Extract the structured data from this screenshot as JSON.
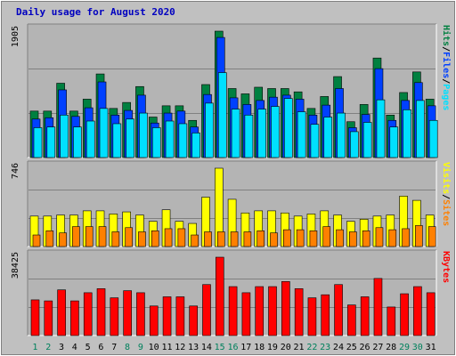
{
  "title": "Daily usage for August 2020",
  "colors": {
    "background": "#c0c0c0",
    "panel": "#b4b4b4",
    "hits": "#008040",
    "files": "#0040ff",
    "pages": "#00e0ff",
    "visits": "#ffff00",
    "sites": "#ff8000",
    "kbytes": "#ff0000",
    "weekday_label": "#000000",
    "weekend_label": "#00805c"
  },
  "chart_data": [
    {
      "type": "bar",
      "panel": "hits-files-pages",
      "max_label": "1905",
      "ylim": [
        0,
        1905
      ],
      "legend": {
        "pages": "Pages",
        "files": "Files",
        "hits": "Hits",
        "sep": "/"
      },
      "categories": [
        "1",
        "2",
        "3",
        "4",
        "5",
        "6",
        "7",
        "8",
        "9",
        "10",
        "11",
        "12",
        "13",
        "14",
        "15",
        "16",
        "17",
        "18",
        "19",
        "20",
        "21",
        "22",
        "23",
        "24",
        "25",
        "26",
        "27",
        "28",
        "29",
        "30",
        "31"
      ],
      "weekend": [
        "1",
        "2",
        "8",
        "9",
        "15",
        "16",
        "22",
        "23",
        "29",
        "30"
      ],
      "series": [
        {
          "name": "Hits",
          "values": [
            700,
            700,
            1120,
            700,
            880,
            1260,
            740,
            830,
            1070,
            610,
            780,
            780,
            560,
            1100,
            1905,
            1040,
            960,
            1060,
            1040,
            1040,
            990,
            740,
            920,
            1220,
            540,
            800,
            1500,
            640,
            980,
            1290,
            880
          ]
        },
        {
          "name": "Files",
          "values": [
            580,
            600,
            1020,
            620,
            750,
            1140,
            640,
            710,
            940,
            520,
            670,
            700,
            460,
            950,
            1810,
            900,
            800,
            860,
            910,
            940,
            880,
            640,
            790,
            1040,
            450,
            650,
            1340,
            560,
            860,
            1130,
            780
          ]
        },
        {
          "name": "Pages",
          "values": [
            450,
            460,
            640,
            460,
            550,
            740,
            510,
            580,
            670,
            450,
            550,
            510,
            370,
            820,
            1280,
            730,
            640,
            730,
            770,
            890,
            690,
            500,
            610,
            670,
            390,
            530,
            870,
            460,
            720,
            860,
            560
          ]
        }
      ]
    },
    {
      "type": "bar",
      "panel": "visits-sites",
      "max_label": "746",
      "ylim": [
        0,
        746
      ],
      "legend": {
        "sites": "Sites",
        "visits": "Visits",
        "sep": "/"
      },
      "categories": [
        "1",
        "2",
        "3",
        "4",
        "5",
        "6",
        "7",
        "8",
        "9",
        "10",
        "11",
        "12",
        "13",
        "14",
        "15",
        "16",
        "17",
        "18",
        "19",
        "20",
        "21",
        "22",
        "23",
        "24",
        "25",
        "26",
        "27",
        "28",
        "29",
        "30",
        "31"
      ],
      "series": [
        {
          "name": "Visits",
          "values": [
            290,
            290,
            300,
            300,
            340,
            340,
            310,
            330,
            300,
            240,
            350,
            240,
            220,
            470,
            746,
            450,
            320,
            340,
            340,
            320,
            290,
            310,
            340,
            300,
            240,
            260,
            290,
            300,
            480,
            440,
            300
          ]
        },
        {
          "name": "Sites",
          "values": [
            110,
            150,
            130,
            190,
            190,
            190,
            140,
            180,
            140,
            150,
            170,
            170,
            110,
            140,
            140,
            140,
            140,
            150,
            130,
            160,
            160,
            150,
            190,
            160,
            140,
            150,
            180,
            160,
            170,
            200,
            190
          ]
        }
      ]
    },
    {
      "type": "bar",
      "panel": "kbytes",
      "max_label": "38425",
      "ylim": [
        0,
        38425
      ],
      "legend": {
        "kbytes": "KBytes"
      },
      "categories": [
        "1",
        "2",
        "3",
        "4",
        "5",
        "6",
        "7",
        "8",
        "9",
        "10",
        "11",
        "12",
        "13",
        "14",
        "15",
        "16",
        "17",
        "18",
        "19",
        "20",
        "21",
        "22",
        "23",
        "24",
        "25",
        "26",
        "27",
        "28",
        "29",
        "30",
        "31"
      ],
      "series": [
        {
          "name": "KBytes",
          "values": [
            17500,
            17000,
            22400,
            17000,
            21000,
            23000,
            18500,
            22000,
            21000,
            14500,
            19000,
            19000,
            14500,
            25000,
            38425,
            24000,
            21000,
            24000,
            24000,
            26500,
            23000,
            18500,
            20000,
            25000,
            15000,
            19000,
            28000,
            14000,
            20500,
            24000,
            21000
          ]
        }
      ]
    }
  ]
}
